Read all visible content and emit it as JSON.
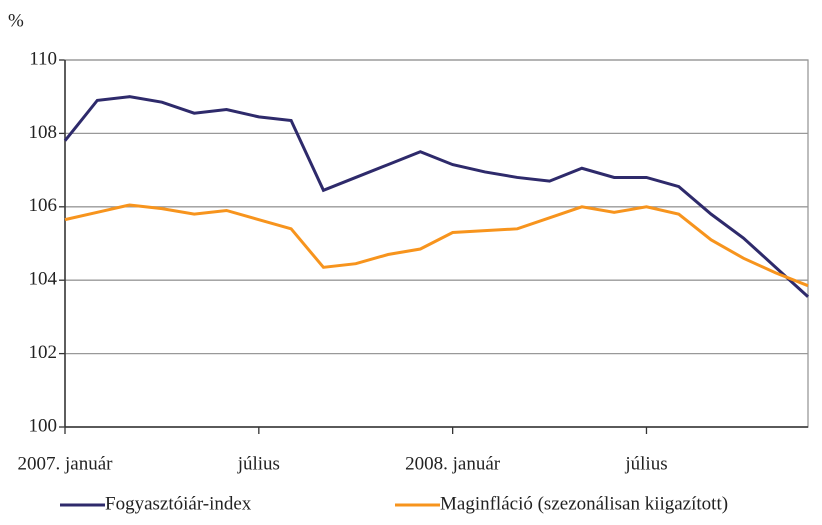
{
  "chart_data": {
    "type": "line",
    "y_label": "%",
    "categories": [
      "2007. január",
      null,
      null,
      null,
      null,
      null,
      "július",
      null,
      null,
      null,
      null,
      null,
      "2008. január",
      null,
      null,
      null,
      null,
      null,
      "július",
      null,
      null,
      null,
      null,
      null
    ],
    "series": [
      {
        "name": "Fogyasztóiár-index",
        "color": "#2e2a6b",
        "values": [
          107.8,
          108.9,
          109.0,
          108.85,
          108.55,
          108.65,
          108.45,
          108.35,
          106.45,
          106.8,
          107.15,
          107.5,
          107.15,
          106.95,
          106.8,
          106.7,
          107.05,
          106.8,
          106.8,
          106.55,
          105.8,
          105.15,
          104.35,
          103.55
        ]
      },
      {
        "name": "Maginfláció (szezonálisan kiigazított)",
        "color": "#f7941d",
        "values": [
          105.65,
          105.85,
          106.05,
          105.95,
          105.8,
          105.9,
          105.65,
          105.4,
          104.35,
          104.45,
          104.7,
          104.85,
          105.3,
          105.35,
          105.4,
          105.7,
          106.0,
          105.85,
          106.0,
          105.8,
          105.1,
          104.6,
          104.2,
          103.85
        ]
      }
    ],
    "ylim": [
      100,
      110
    ],
    "yticks": [
      100,
      102,
      104,
      106,
      108,
      110
    ],
    "grid": true,
    "legend": "bottom"
  }
}
